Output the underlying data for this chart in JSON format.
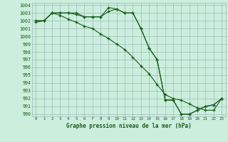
{
  "title": "Graphe pression niveau de la mer (hPa)",
  "bg_color": "#cceedd",
  "grid_color": "#99bbbb",
  "line_color": "#1a5c1a",
  "xlim": [
    0,
    23
  ],
  "ylim": [
    990,
    1004
  ],
  "xticks": [
    0,
    1,
    2,
    3,
    4,
    5,
    6,
    7,
    8,
    9,
    10,
    11,
    12,
    13,
    14,
    15,
    16,
    17,
    18,
    19,
    20,
    21,
    22,
    23
  ],
  "yticks": [
    990,
    991,
    992,
    993,
    994,
    995,
    996,
    997,
    998,
    999,
    1000,
    1001,
    1002,
    1003,
    1004
  ],
  "series1_y": [
    1002,
    1002,
    1003,
    1003,
    1003,
    1003,
    1002.5,
    1002.5,
    1002.5,
    1003.7,
    1003.5,
    1003,
    1003,
    1001,
    998.5,
    997,
    991.8,
    991.8,
    990,
    990,
    990.5,
    991,
    991.2,
    992
  ],
  "series2_y": [
    1002,
    1002,
    1003,
    1003,
    1003,
    1002.8,
    1002.5,
    1002.5,
    1002.5,
    1003.2,
    1003.5,
    1003,
    1003,
    1001,
    998.5,
    997,
    991.8,
    991.8,
    990,
    990,
    990.5,
    991,
    991.2,
    992
  ],
  "series3_y": [
    1001.8,
    1002,
    1003,
    1002.7,
    1002.2,
    1001.8,
    1001.3,
    1001,
    1000.3,
    999.7,
    999,
    998.3,
    997.3,
    996.2,
    995.2,
    993.8,
    992.5,
    992,
    991.8,
    991.3,
    990.8,
    990.5,
    990.5,
    992
  ]
}
